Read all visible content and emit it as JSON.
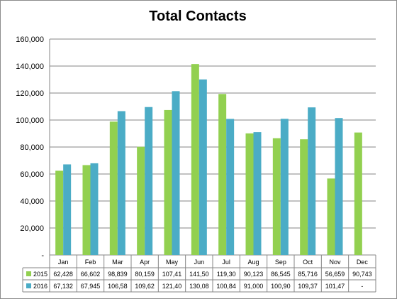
{
  "chart_data": {
    "type": "bar",
    "title": "Total Contacts",
    "categories": [
      "Jan",
      "Feb",
      "Mar",
      "Apr",
      "May",
      "Jun",
      "Jul",
      "Aug",
      "Sep",
      "Oct",
      "Nov",
      "Dec"
    ],
    "series": [
      {
        "name": "2015",
        "color": "#92d050",
        "values": [
          62428,
          66602,
          98839,
          80159,
          107410,
          141500,
          119300,
          90123,
          86545,
          85716,
          56659,
          90743
        ],
        "table_labels": [
          "62,428",
          "66,602",
          "98,839",
          "80,159",
          "107,41",
          "141,50",
          "119,30",
          "90,123",
          "86,545",
          "85,716",
          "56,659",
          "90,743"
        ]
      },
      {
        "name": "2016",
        "color": "#4bacc6",
        "values": [
          67132,
          67945,
          106580,
          109620,
          121400,
          130080,
          100840,
          91000,
          100900,
          109370,
          101470,
          null
        ],
        "table_labels": [
          "67,132",
          "67,945",
          "106,58",
          "109,62",
          "121,40",
          "130,08",
          "100,84",
          "91,000",
          "100,90",
          "109,37",
          "101,47",
          "-"
        ]
      }
    ],
    "y_ticks": [
      "-",
      "20,000",
      "40,000",
      "60,000",
      "80,000",
      "100,000",
      "120,000",
      "140,000",
      "160,000"
    ],
    "ylim": [
      0,
      160000
    ],
    "grid": true,
    "legend": "data-table"
  }
}
